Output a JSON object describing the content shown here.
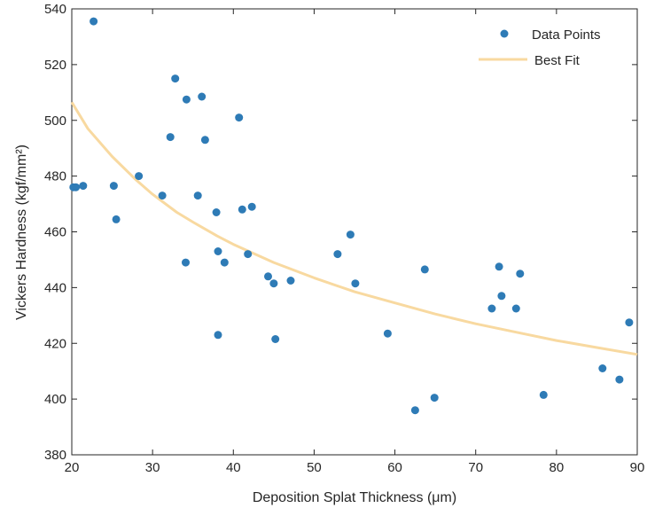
{
  "chart_data": {
    "type": "scatter",
    "xlabel": "Deposition Splat Thickness (μm)",
    "ylabel": "Vickers Hardness (kgf/mm²)",
    "xlim": [
      20,
      90
    ],
    "ylim": [
      380,
      540
    ],
    "xticks": [
      20,
      30,
      40,
      50,
      60,
      70,
      80,
      90
    ],
    "yticks": [
      380,
      400,
      420,
      440,
      460,
      480,
      500,
      520,
      540
    ],
    "grid": false,
    "legend_position": "top-right",
    "colors": {
      "points": "#2E7BB6",
      "fit": "#F8D9A0",
      "axis": "#262626"
    },
    "series": [
      {
        "name": "Data Points",
        "kind": "scatter",
        "x": [
          20.2,
          20.5,
          21.4,
          22.7,
          25.2,
          25.5,
          28.3,
          31.2,
          32.2,
          32.8,
          34.1,
          34.2,
          35.6,
          36.1,
          36.5,
          37.9,
          38.1,
          38.1,
          38.9,
          40.7,
          41.1,
          41.8,
          42.3,
          44.3,
          45.0,
          45.2,
          47.1,
          52.9,
          54.5,
          55.1,
          59.1,
          62.5,
          63.7,
          64.9,
          72.0,
          72.9,
          73.2,
          75.0,
          75.5,
          78.4,
          85.7,
          87.8,
          89.0
        ],
        "y": [
          476,
          476,
          476.5,
          535.5,
          476.5,
          464.5,
          480,
          473,
          494,
          515,
          449,
          507.5,
          473,
          508.5,
          493,
          467,
          453,
          423,
          449,
          501,
          468,
          452,
          469,
          444,
          441.5,
          421.5,
          442.5,
          452,
          459,
          441.5,
          423.5,
          396,
          446.5,
          400.5,
          432.5,
          447.5,
          437,
          432.5,
          445,
          401.5,
          411,
          407,
          427.5
        ]
      },
      {
        "name": "Best Fit",
        "kind": "line",
        "x": [
          20,
          22,
          25,
          28,
          30,
          33,
          35,
          38,
          40,
          45,
          50,
          55,
          60,
          65,
          70,
          75,
          80,
          85,
          90
        ],
        "y": [
          506.5,
          497,
          487,
          478.5,
          473.5,
          467,
          463.5,
          458.5,
          455.5,
          449,
          443.5,
          438.5,
          434.5,
          430.5,
          427,
          424,
          421,
          418.5,
          416
        ]
      }
    ]
  }
}
